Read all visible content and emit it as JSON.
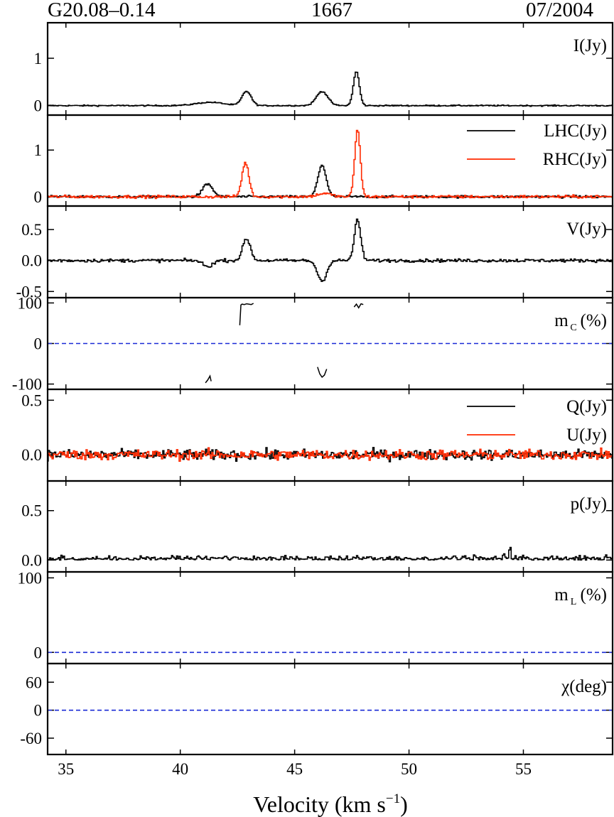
{
  "header": {
    "source": "G20.08–0.14",
    "frequency": "1667",
    "date": "07/2004"
  },
  "xaxis": {
    "label_main": "Velocity (km s",
    "label_sup": "−1",
    "label_close": ")",
    "range": [
      34.2,
      58.9
    ],
    "ticks": [
      35,
      40,
      45,
      50,
      55
    ]
  },
  "chart_data": [
    {
      "id": "I",
      "type": "line",
      "ylabel": "I(Jy)",
      "ylim": [
        -0.2,
        1.75
      ],
      "yticks": [
        0,
        1
      ],
      "ytick_labels": [
        "0",
        "1"
      ],
      "series": [
        {
          "color": "#000000",
          "noise": 0.012,
          "peaks": [
            [
              41.3,
              0.07,
              0.6
            ],
            [
              42.9,
              0.3,
              0.2
            ],
            [
              46.2,
              0.3,
              0.25
            ],
            [
              47.7,
              0.72,
              0.13
            ]
          ]
        }
      ]
    },
    {
      "id": "LR",
      "type": "line",
      "ylim": [
        -0.2,
        1.75
      ],
      "yticks": [
        0,
        1
      ],
      "ytick_labels": [
        "0",
        "1"
      ],
      "legend": [
        {
          "name": "LHC(Jy)",
          "color": "#000000"
        },
        {
          "name": "RHC(Jy)",
          "color": "#ff2a00"
        }
      ],
      "series": [
        {
          "name": "LHC(Jy)",
          "color": "#000000",
          "noise": 0.025,
          "peaks": [
            [
              41.2,
              0.27,
              0.22
            ],
            [
              46.2,
              0.68,
              0.18
            ]
          ]
        },
        {
          "name": "RHC(Jy)",
          "color": "#ff2a00",
          "noise": 0.03,
          "peaks": [
            [
              42.85,
              0.73,
              0.15
            ],
            [
              46.3,
              0.07,
              0.3
            ],
            [
              47.75,
              1.45,
              0.12
            ]
          ]
        }
      ]
    },
    {
      "id": "V",
      "type": "line",
      "ylabel": "V(Jy)",
      "ylim": [
        -0.6,
        0.88
      ],
      "yticks": [
        -0.5,
        0.0,
        0.5
      ],
      "ytick_labels": [
        "-0.5",
        "0.0",
        "0.5"
      ],
      "series": [
        {
          "color": "#000000",
          "noise": 0.025,
          "peaks": [
            [
              41.2,
              -0.1,
              0.2
            ],
            [
              42.9,
              0.35,
              0.17
            ],
            [
              46.2,
              -0.33,
              0.2
            ],
            [
              47.75,
              0.65,
              0.14
            ]
          ]
        }
      ]
    },
    {
      "id": "mc",
      "type": "line",
      "ylabel": "m",
      "ylabel_sub": "C",
      "ylabel_tail": "(%)",
      "ylim": [
        -113,
        113
      ],
      "yticks": [
        -100,
        0,
        100
      ],
      "ytick_labels": [
        "-100",
        "0",
        "100"
      ],
      "zero_line": true,
      "segments": [
        {
          "x": [
            41.1,
            41.2,
            41.3,
            41.35
          ],
          "y": [
            -97,
            -90,
            -80,
            -93
          ]
        },
        {
          "x": [
            42.6,
            42.65,
            42.7,
            42.8,
            42.9,
            43.0,
            43.1,
            43.2
          ],
          "y": [
            45,
            95,
            97,
            96,
            98,
            97,
            96,
            99
          ]
        },
        {
          "x": [
            46.0,
            46.1,
            46.2,
            46.3,
            46.4
          ],
          "y": [
            -58,
            -75,
            -83,
            -78,
            -63
          ]
        },
        {
          "x": [
            47.6,
            47.7,
            47.8,
            47.9,
            48.0
          ],
          "y": [
            90,
            97,
            88,
            98,
            96
          ]
        }
      ]
    },
    {
      "id": "QU",
      "type": "line",
      "ylim": [
        -0.24,
        0.6
      ],
      "yticks": [
        0.0,
        0.5
      ],
      "ytick_labels": [
        "0.0",
        "0.5"
      ],
      "legend": [
        {
          "name": "Q(Jy)",
          "color": "#000000"
        },
        {
          "name": "U(Jy)",
          "color": "#ff2a00"
        }
      ],
      "series": [
        {
          "name": "Q(Jy)",
          "color": "#000000",
          "noise": 0.045,
          "peaks": []
        },
        {
          "name": "U(Jy)",
          "color": "#ff2a00",
          "noise": 0.045,
          "peaks": []
        }
      ]
    },
    {
      "id": "p",
      "type": "line",
      "ylabel": "p(Jy)",
      "ylim": [
        -0.12,
        0.8
      ],
      "yticks": [
        0.0,
        0.5
      ],
      "ytick_labels": [
        "0.0",
        "0.5"
      ],
      "series": [
        {
          "color": "#000000",
          "noise": 0.04,
          "abs": true,
          "peaks": [
            [
              54.4,
              0.12,
              0.05
            ]
          ]
        }
      ]
    },
    {
      "id": "mL",
      "type": "line",
      "ylabel": "m",
      "ylabel_sub": "L",
      "ylabel_tail": "(%)",
      "ylim": [
        -15,
        108
      ],
      "yticks": [
        0,
        100
      ],
      "ytick_labels": [
        "0",
        "100"
      ],
      "zero_line": true
    },
    {
      "id": "chi",
      "type": "line",
      "ylabel": "χ(deg)",
      "ylim": [
        -95,
        100
      ],
      "yticks": [
        -60,
        0,
        60
      ],
      "ytick_labels": [
        "-60",
        "0",
        "60"
      ],
      "zero_line": true
    }
  ]
}
